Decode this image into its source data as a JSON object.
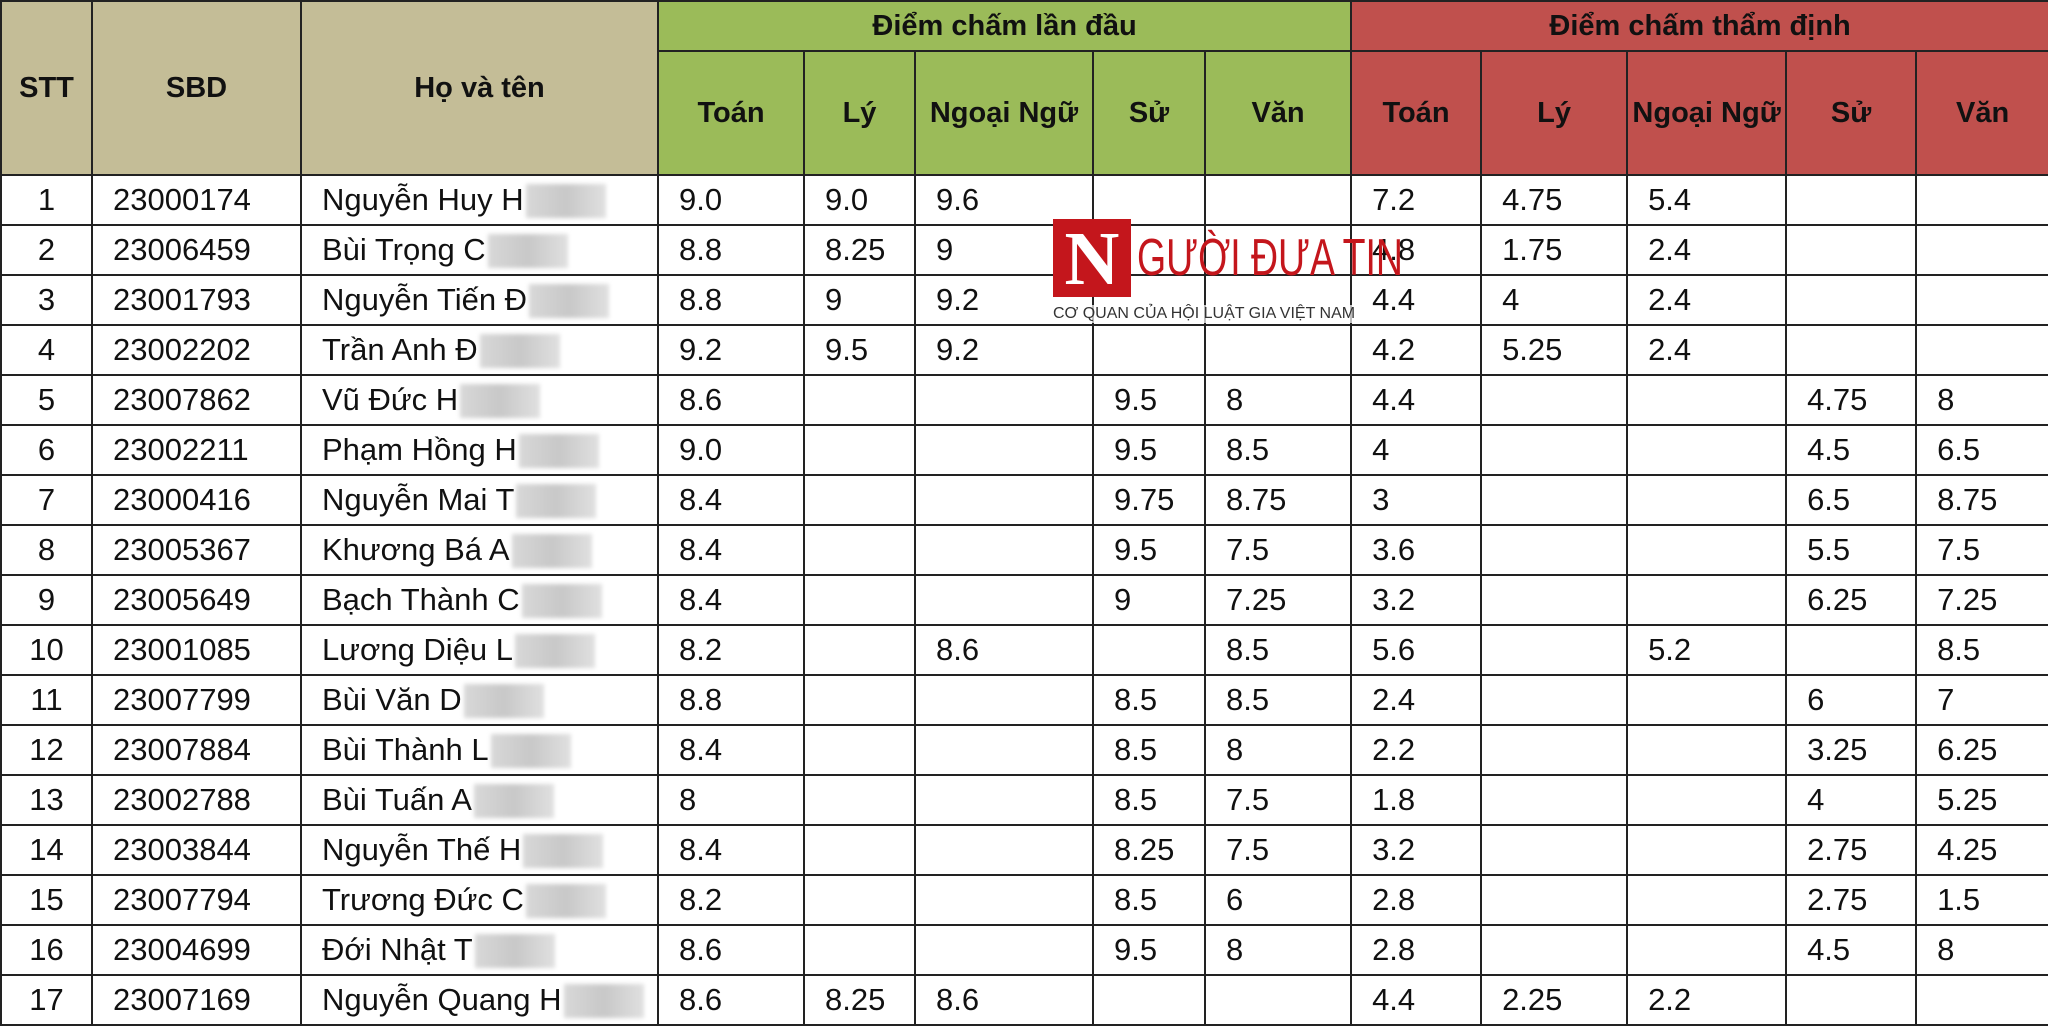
{
  "table": {
    "header": {
      "stt": "STT",
      "sbd": "SBD",
      "name": "Họ và tên",
      "groups": [
        {
          "title": "Điểm chấm lần đầu",
          "subjects": [
            "Toán",
            "Lý",
            "Ngoại Ngữ",
            "Sử",
            "Văn"
          ]
        },
        {
          "title": "Điểm chấm thẩm định",
          "subjects": [
            "Toán",
            "Lý",
            "Ngoại Ngữ",
            "Sử",
            "Văn"
          ]
        }
      ]
    },
    "rows": [
      [
        "1",
        "23000174",
        "Nguyễn Huy H",
        "9.0",
        "9.0",
        "9.6",
        null,
        null,
        "7.2",
        "4.75",
        "5.4",
        null,
        null
      ],
      [
        "2",
        "23006459",
        "Bùi Trọng C",
        "8.8",
        "8.25",
        "9",
        null,
        null,
        "4.8",
        "1.75",
        "2.4",
        null,
        null
      ],
      [
        "3",
        "23001793",
        "Nguyễn Tiến Đ",
        "8.8",
        "9",
        "9.2",
        null,
        null,
        "4.4",
        "4",
        "2.4",
        null,
        null
      ],
      [
        "4",
        "23002202",
        "Trần Anh Đ",
        "9.2",
        "9.5",
        "9.2",
        null,
        null,
        "4.2",
        "5.25",
        "2.4",
        null,
        null
      ],
      [
        "5",
        "23007862",
        "Vũ Đức H",
        "8.6",
        null,
        null,
        "9.5",
        "8",
        "4.4",
        null,
        null,
        "4.75",
        "8"
      ],
      [
        "6",
        "23002211",
        "Phạm Hồng H",
        "9.0",
        null,
        null,
        "9.5",
        "8.5",
        "4",
        null,
        null,
        "4.5",
        "6.5"
      ],
      [
        "7",
        "23000416",
        "Nguyễn Mai T",
        "8.4",
        null,
        null,
        "9.75",
        "8.75",
        "3",
        null,
        null,
        "6.5",
        "8.75"
      ],
      [
        "8",
        "23005367",
        "Khương Bá A",
        "8.4",
        null,
        null,
        "9.5",
        "7.5",
        "3.6",
        null,
        null,
        "5.5",
        "7.5"
      ],
      [
        "9",
        "23005649",
        "Bạch Thành C",
        "8.4",
        null,
        null,
        "9",
        "7.25",
        "3.2",
        null,
        null,
        "6.25",
        "7.25"
      ],
      [
        "10",
        "23001085",
        "Lương Diệu L",
        "8.2",
        null,
        "8.6",
        null,
        "8.5",
        "5.6",
        null,
        "5.2",
        null,
        "8.5"
      ],
      [
        "11",
        "23007799",
        "Bùi Văn D",
        "8.8",
        null,
        null,
        "8.5",
        "8.5",
        "2.4",
        null,
        null,
        "6",
        "7"
      ],
      [
        "12",
        "23007884",
        "Bùi Thành L",
        "8.4",
        null,
        null,
        "8.5",
        "8",
        "2.2",
        null,
        null,
        "3.25",
        "6.25"
      ],
      [
        "13",
        "23002788",
        "Bùi Tuấn A",
        "8",
        null,
        null,
        "8.5",
        "7.5",
        "1.8",
        null,
        null,
        "4",
        "5.25"
      ],
      [
        "14",
        "23003844",
        "Nguyễn Thế H",
        "8.4",
        null,
        null,
        "8.25",
        "7.5",
        "3.2",
        null,
        null,
        "2.75",
        "4.25"
      ],
      [
        "15",
        "23007794",
        "Trương Đức C",
        "8.2",
        null,
        null,
        "8.5",
        "6",
        "2.8",
        null,
        null,
        "2.75",
        "1.5"
      ],
      [
        "16",
        "23004699",
        "Đới Nhật T",
        "8.6",
        null,
        null,
        "9.5",
        "8",
        "2.8",
        null,
        null,
        "4.5",
        "8"
      ],
      [
        "17",
        "23007169",
        "Nguyễn Quang H",
        "8.6",
        "8.25",
        "8.6",
        null,
        null,
        "4.4",
        "2.25",
        "2.2",
        null,
        null
      ]
    ]
  },
  "watermark": {
    "logo_letter": "N",
    "brand": "GƯỜI ĐƯA TIN",
    "tagline": "CƠ QUAN CỦA HỘI LUẬT GIA VIỆT NAM"
  }
}
